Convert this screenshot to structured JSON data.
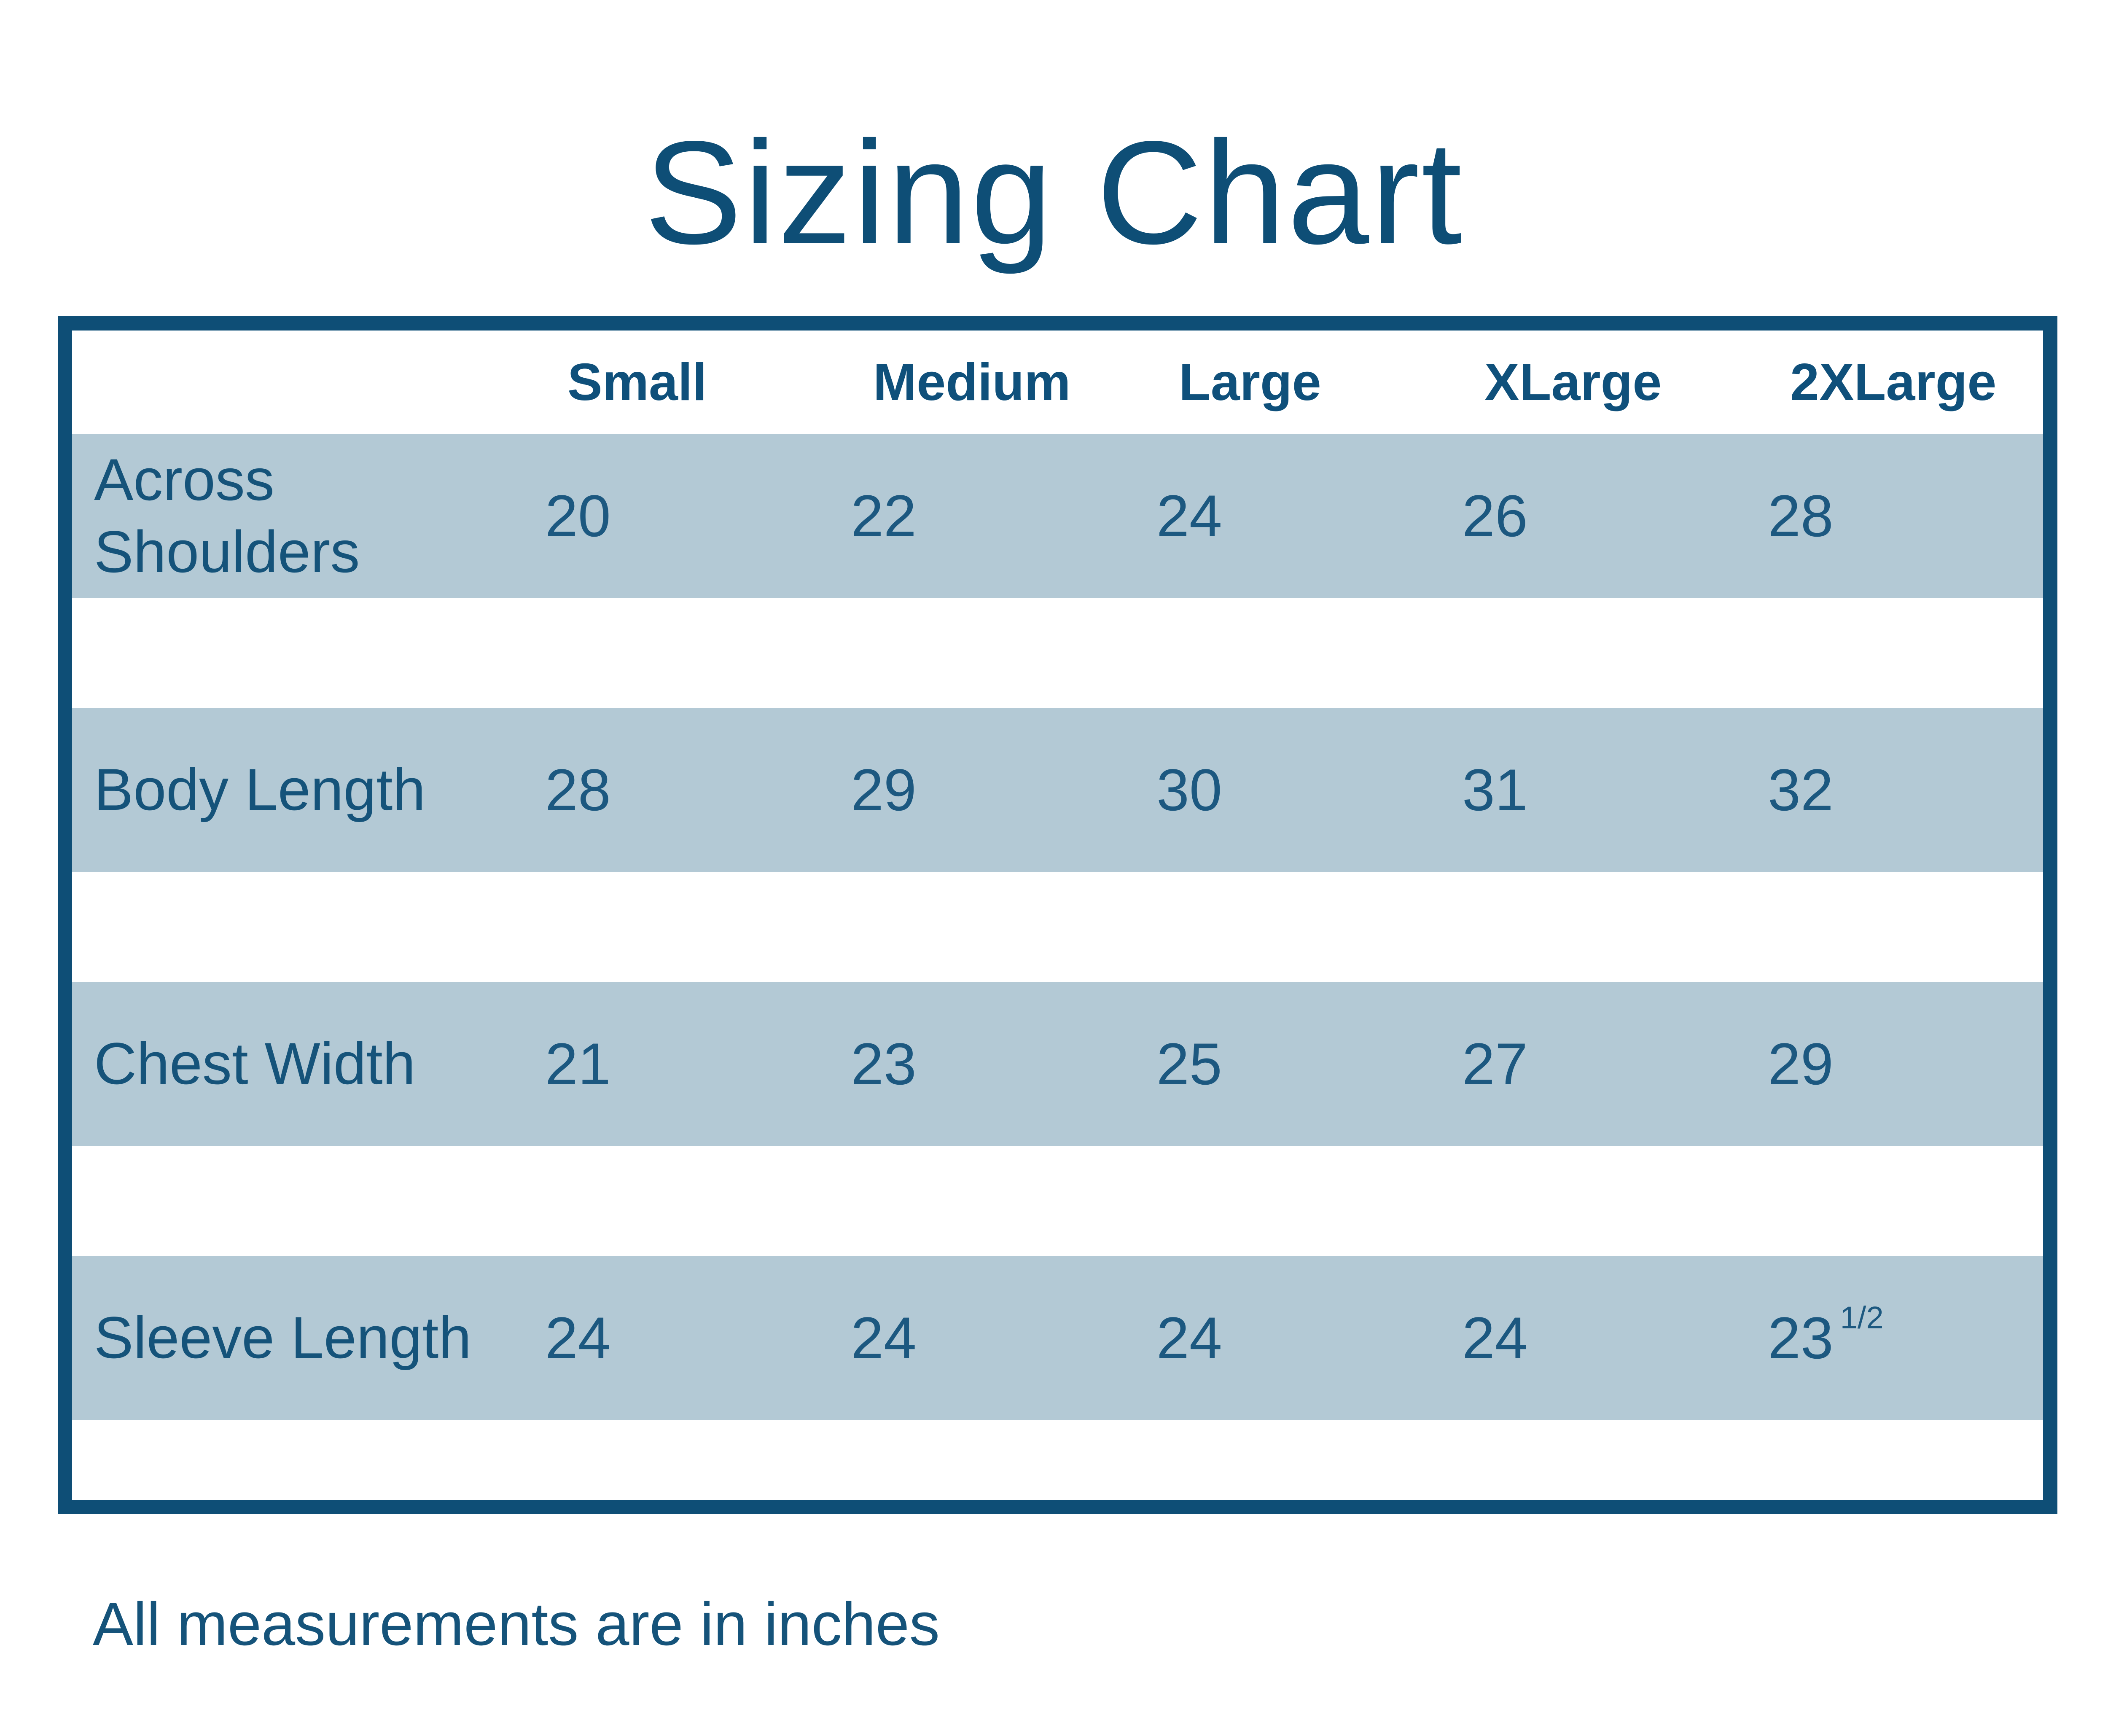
{
  "title": "Sizing Chart",
  "note": "All measurements are in inches",
  "colors": {
    "navy_border": "#0e4e76",
    "header_text": "#0f507b",
    "body_text": "#15537a",
    "value_text": "#1c5880",
    "band_fill": "#b3c9d5",
    "background": "#ffffff"
  },
  "table": {
    "columns": [
      "Small",
      "Medium",
      "Large",
      "XLarge",
      "2XLarge"
    ],
    "rows": [
      {
        "label": "Across Shoulders",
        "values": [
          "20",
          "22",
          "24",
          "26",
          "28"
        ]
      },
      {
        "label": "Body Length",
        "values": [
          "28",
          "29",
          "30",
          "31",
          "32"
        ]
      },
      {
        "label": "Chest Width",
        "values": [
          "21",
          "23",
          "25",
          "27",
          "29"
        ]
      },
      {
        "label": "Sleeve Length",
        "values": [
          "24",
          "24",
          "24",
          "24",
          "23"
        ],
        "last_value_fraction": "1/2"
      }
    ]
  },
  "chart_data": {
    "type": "table",
    "title": "Sizing Chart",
    "columns": [
      "Small",
      "Medium",
      "Large",
      "XLarge",
      "2XLarge"
    ],
    "rows": [
      {
        "label": "Across Shoulders",
        "values": [
          20,
          22,
          24,
          26,
          28
        ]
      },
      {
        "label": "Body Length",
        "values": [
          28,
          29,
          30,
          31,
          32
        ]
      },
      {
        "label": "Chest Width",
        "values": [
          21,
          23,
          25,
          27,
          29
        ]
      },
      {
        "label": "Sleeve Length",
        "values": [
          24,
          24,
          24,
          24,
          23.5
        ]
      }
    ],
    "units": "inches",
    "note": "All measurements are in inches"
  }
}
